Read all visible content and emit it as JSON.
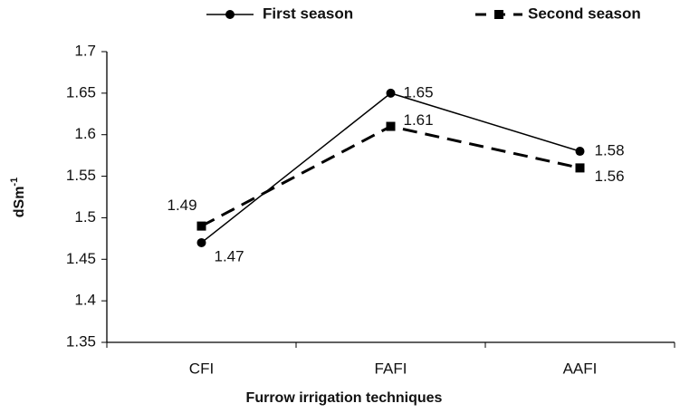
{
  "chart_data": {
    "type": "line",
    "x_label": "Furrow irrigation techniques",
    "y_label": "dSm",
    "y_label_sup": "-1",
    "categories": [
      "CFI",
      "FAFI",
      "AAFI"
    ],
    "series": [
      {
        "name": "First season",
        "color": "#000000",
        "line_style": "solid",
        "marker": "circle",
        "values": [
          1.47,
          1.65,
          1.58
        ]
      },
      {
        "name": "Second season",
        "color": "#000000",
        "line_style": "dashed",
        "marker": "square",
        "values": [
          1.49,
          1.61,
          1.56
        ]
      }
    ],
    "ylim": [
      1.35,
      1.7
    ],
    "yticks": [
      1.35,
      1.4,
      1.45,
      1.5,
      1.55,
      1.6,
      1.65,
      1.7
    ],
    "grid": false,
    "legend": "top"
  }
}
